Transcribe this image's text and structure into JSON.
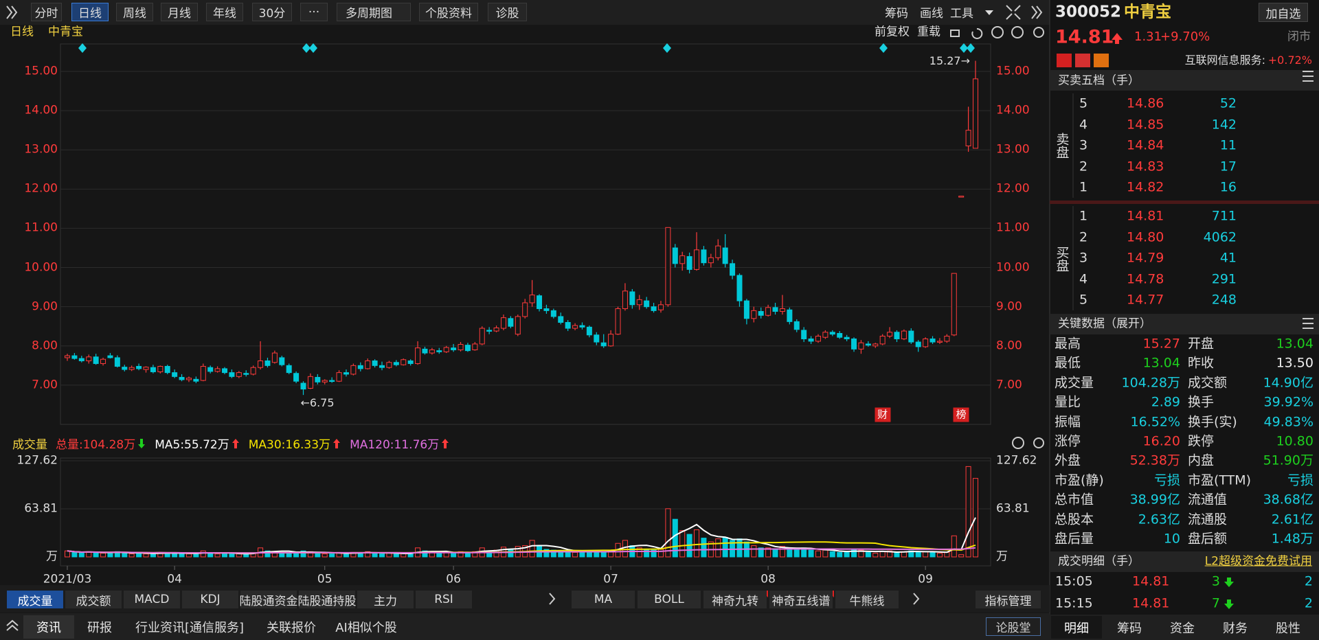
{
  "toolbar": {
    "periods": [
      "分时",
      "日线",
      "周线",
      "月线",
      "年线",
      "30分",
      "···",
      "多周期图",
      "个股资料",
      "诊股"
    ],
    "active": 1,
    "tools": [
      "筹码",
      "画线",
      "工具"
    ],
    "sub_left": [
      "日线",
      "中青宝"
    ],
    "sub_right": [
      "前复权",
      "重载"
    ]
  },
  "chart_data": [
    {
      "type": "candlestick",
      "up_color": "#ff3b3b",
      "down_color": "#00c8d8",
      "ylim": [
        6.0,
        15.7
      ],
      "yticks": [
        {
          "value": 7,
          "label": "7.00"
        },
        {
          "value": 8,
          "label": "8.00"
        },
        {
          "value": 9,
          "label": "9.00"
        },
        {
          "value": 10,
          "label": "10.00"
        },
        {
          "value": 11,
          "label": "11.00"
        },
        {
          "value": 12,
          "label": "12.00"
        },
        {
          "value": 13,
          "label": "13.00"
        },
        {
          "value": 14,
          "label": "14.00"
        },
        {
          "value": 15,
          "label": "15.00"
        }
      ],
      "grid": true,
      "annotations": [
        {
          "text": "15.27→",
          "x": 127,
          "y": 15.27
        },
        {
          "text": "←6.75",
          "x": 33,
          "y": 6.75
        }
      ],
      "badges": [
        {
          "text": "财",
          "x": 114
        },
        {
          "text": "榜",
          "x": 125
        }
      ],
      "ohlc": [
        [
          7.7,
          7.8,
          7.62,
          7.75
        ],
        [
          7.75,
          7.82,
          7.65,
          7.68
        ],
        [
          7.68,
          7.75,
          7.58,
          7.62
        ],
        [
          7.62,
          7.78,
          7.55,
          7.72
        ],
        [
          7.72,
          7.8,
          7.52,
          7.55
        ],
        [
          7.55,
          7.7,
          7.5,
          7.66
        ],
        [
          7.75,
          7.82,
          7.68,
          7.7
        ],
        [
          7.7,
          7.76,
          7.45,
          7.48
        ],
        [
          7.46,
          7.52,
          7.35,
          7.4
        ],
        [
          7.4,
          7.5,
          7.36,
          7.45
        ],
        [
          7.48,
          7.55,
          7.38,
          7.42
        ],
        [
          7.4,
          7.48,
          7.32,
          7.46
        ],
        [
          7.45,
          7.52,
          7.3,
          7.34
        ],
        [
          7.34,
          7.5,
          7.3,
          7.48
        ],
        [
          7.48,
          7.52,
          7.28,
          7.32
        ],
        [
          7.32,
          7.4,
          7.18,
          7.22
        ],
        [
          7.2,
          7.28,
          7.1,
          7.14
        ],
        [
          7.14,
          7.22,
          7.08,
          7.18
        ],
        [
          7.15,
          7.22,
          7.05,
          7.1
        ],
        [
          7.12,
          7.55,
          7.1,
          7.48
        ],
        [
          7.45,
          7.5,
          7.3,
          7.35
        ],
        [
          7.35,
          7.48,
          7.32,
          7.42
        ],
        [
          7.42,
          7.46,
          7.28,
          7.32
        ],
        [
          7.32,
          7.4,
          7.18,
          7.22
        ],
        [
          7.22,
          7.36,
          7.18,
          7.32
        ],
        [
          7.3,
          7.38,
          7.22,
          7.28
        ],
        [
          7.28,
          7.5,
          7.25,
          7.45
        ],
        [
          7.45,
          8.12,
          7.4,
          7.62
        ],
        [
          7.62,
          7.7,
          7.45,
          7.5
        ],
        [
          7.58,
          7.88,
          7.55,
          7.82
        ],
        [
          7.7,
          7.75,
          7.48,
          7.52
        ],
        [
          7.5,
          7.55,
          7.28,
          7.32
        ],
        [
          7.3,
          7.35,
          7.05,
          7.1
        ],
        [
          7.05,
          7.1,
          6.75,
          6.9
        ],
        [
          6.92,
          7.3,
          6.9,
          7.22
        ],
        [
          7.2,
          7.28,
          7.02,
          7.08
        ],
        [
          7.08,
          7.15,
          7.02,
          7.12
        ],
        [
          7.12,
          7.2,
          7.06,
          7.1
        ],
        [
          7.1,
          7.38,
          7.08,
          7.32
        ],
        [
          7.32,
          7.4,
          7.22,
          7.28
        ],
        [
          7.28,
          7.55,
          7.25,
          7.5
        ],
        [
          7.5,
          7.58,
          7.35,
          7.42
        ],
        [
          7.42,
          7.68,
          7.4,
          7.62
        ],
        [
          7.62,
          7.66,
          7.45,
          7.5
        ],
        [
          7.5,
          7.6,
          7.38,
          7.45
        ],
        [
          7.45,
          7.62,
          7.42,
          7.58
        ],
        [
          7.58,
          7.64,
          7.48,
          7.52
        ],
        [
          7.52,
          7.68,
          7.5,
          7.65
        ],
        [
          7.62,
          7.66,
          7.5,
          7.55
        ],
        [
          7.55,
          8.12,
          7.52,
          7.95
        ],
        [
          7.92,
          7.98,
          7.78,
          7.82
        ],
        [
          7.82,
          7.95,
          7.78,
          7.9
        ],
        [
          7.88,
          7.95,
          7.8,
          7.85
        ],
        [
          7.85,
          8.0,
          7.82,
          7.96
        ],
        [
          7.95,
          8.05,
          7.85,
          7.9
        ],
        [
          7.9,
          8.1,
          7.86,
          8.04
        ],
        [
          8.02,
          8.08,
          7.85,
          7.88
        ],
        [
          7.9,
          8.1,
          7.88,
          8.05
        ],
        [
          8.05,
          8.5,
          8.02,
          8.45
        ],
        [
          8.4,
          8.48,
          8.3,
          8.38
        ],
        [
          8.38,
          8.52,
          8.35,
          8.46
        ],
        [
          8.45,
          8.8,
          8.4,
          8.72
        ],
        [
          8.7,
          8.76,
          8.45,
          8.5
        ],
        [
          8.3,
          8.8,
          8.25,
          8.75
        ],
        [
          8.75,
          9.2,
          8.7,
          9.1
        ],
        [
          9.1,
          9.68,
          9.0,
          9.3
        ],
        [
          9.28,
          9.32,
          8.88,
          8.95
        ],
        [
          8.95,
          9.05,
          8.82,
          8.9
        ],
        [
          8.9,
          8.95,
          8.7,
          8.75
        ],
        [
          8.75,
          8.85,
          8.55,
          8.6
        ],
        [
          8.6,
          8.66,
          8.38,
          8.45
        ],
        [
          8.45,
          8.58,
          8.4,
          8.52
        ],
        [
          8.52,
          8.6,
          8.42,
          8.48
        ],
        [
          8.48,
          8.52,
          8.22,
          8.28
        ],
        [
          8.28,
          8.35,
          8.02,
          8.1
        ],
        [
          8.08,
          8.3,
          7.95,
          8.0
        ],
        [
          8.0,
          8.4,
          7.98,
          8.3
        ],
        [
          8.3,
          9.0,
          8.28,
          8.95
        ],
        [
          8.95,
          9.6,
          8.9,
          9.4
        ],
        [
          9.38,
          9.45,
          8.95,
          9.05
        ],
        [
          9.05,
          9.3,
          8.92,
          9.18
        ],
        [
          9.15,
          9.25,
          8.95,
          9.0
        ],
        [
          9.0,
          9.1,
          8.85,
          8.9
        ],
        [
          8.92,
          9.15,
          8.85,
          9.05
        ],
        [
          9.05,
          11.02,
          9.0,
          11.02
        ],
        [
          10.5,
          10.6,
          10.0,
          10.1
        ],
        [
          10.1,
          10.4,
          9.92,
          10.3
        ],
        [
          10.28,
          10.38,
          9.85,
          9.95
        ],
        [
          9.95,
          10.9,
          9.92,
          10.45
        ],
        [
          10.45,
          10.55,
          10.05,
          10.12
        ],
        [
          10.12,
          10.35,
          10.0,
          10.25
        ],
        [
          10.25,
          10.72,
          10.18,
          10.55
        ],
        [
          10.5,
          10.85,
          10.0,
          10.1
        ],
        [
          10.1,
          10.2,
          9.7,
          9.8
        ],
        [
          9.8,
          9.85,
          9.0,
          9.15
        ],
        [
          9.15,
          9.2,
          8.55,
          8.7
        ],
        [
          8.7,
          9.0,
          8.6,
          8.9
        ],
        [
          8.88,
          8.98,
          8.7,
          8.78
        ],
        [
          8.78,
          9.05,
          8.75,
          8.98
        ],
        [
          8.98,
          9.1,
          8.8,
          8.88
        ],
        [
          8.88,
          9.3,
          8.8,
          8.95
        ],
        [
          8.92,
          8.98,
          8.55,
          8.62
        ],
        [
          8.62,
          8.68,
          8.35,
          8.42
        ],
        [
          8.4,
          8.48,
          8.1,
          8.18
        ],
        [
          8.18,
          8.25,
          8.05,
          8.12
        ],
        [
          8.12,
          8.3,
          8.08,
          8.25
        ],
        [
          8.22,
          8.4,
          8.18,
          8.35
        ],
        [
          8.35,
          8.4,
          8.25,
          8.3
        ],
        [
          8.32,
          8.38,
          8.18,
          8.22
        ],
        [
          8.22,
          8.28,
          8.12,
          8.18
        ],
        [
          8.18,
          8.22,
          7.85,
          7.92
        ],
        [
          7.92,
          8.15,
          7.8,
          8.08
        ],
        [
          8.05,
          8.12,
          7.98,
          8.02
        ],
        [
          8.0,
          8.08,
          7.95,
          8.05
        ],
        [
          8.05,
          8.3,
          8.02,
          8.25
        ],
        [
          8.25,
          8.48,
          8.2,
          8.35
        ],
        [
          8.35,
          8.4,
          8.1,
          8.18
        ],
        [
          8.18,
          8.42,
          8.15,
          8.38
        ],
        [
          8.38,
          8.45,
          8.05,
          8.1
        ],
        [
          8.1,
          8.15,
          7.85,
          7.98
        ],
        [
          7.98,
          8.22,
          7.95,
          8.18
        ],
        [
          8.18,
          8.25,
          8.05,
          8.1
        ],
        [
          8.1,
          8.2,
          8.05,
          8.12
        ],
        [
          8.12,
          8.3,
          8.08,
          8.25
        ],
        [
          8.28,
          9.85,
          8.25,
          9.85
        ],
        [
          11.82,
          11.82,
          11.82,
          11.82
        ],
        [
          13.1,
          14.1,
          12.95,
          13.5
        ],
        [
          13.04,
          15.27,
          13.04,
          14.81
        ]
      ]
    },
    {
      "type": "bar",
      "title": "成交量",
      "legend": [
        "总量:104.28万",
        "MA5:55.72万",
        "MA30:16.33万",
        "MA120:11.76万"
      ],
      "ma": [
        {
          "period": 5,
          "color": "#ffffff"
        },
        {
          "period": 30,
          "color": "#f5e400"
        },
        {
          "period": 120,
          "color": "#e070e0"
        }
      ],
      "ylim": [
        0,
        131.3
      ],
      "yticks": [
        {
          "value": 0,
          "label": "万"
        },
        63.81,
        127.62
      ],
      "grid": true,
      "xticks": [
        {
          "value": 0,
          "label": "2021/03"
        },
        {
          "value": 15,
          "label": "04"
        },
        {
          "value": 36,
          "label": "05"
        },
        {
          "value": 54,
          "label": "06"
        },
        {
          "value": 76,
          "label": "07"
        },
        {
          "value": 98,
          "label": "08"
        },
        {
          "value": 120,
          "label": "09"
        }
      ],
      "values": [
        8,
        6,
        5,
        7,
        6,
        5,
        6,
        7,
        5,
        4,
        5,
        4,
        5,
        6,
        5,
        5,
        4,
        4,
        5,
        8,
        5,
        4,
        4,
        5,
        4,
        4,
        5,
        12,
        8,
        7,
        6,
        5,
        6,
        8,
        7,
        5,
        4,
        4,
        6,
        5,
        6,
        5,
        7,
        5,
        4,
        5,
        4,
        5,
        5,
        12,
        8,
        6,
        5,
        6,
        5,
        7,
        6,
        7,
        12,
        8,
        9,
        13,
        10,
        14,
        15,
        22,
        14,
        10,
        9,
        8,
        8,
        6,
        6,
        7,
        8,
        7,
        9,
        18,
        22,
        15,
        12,
        10,
        9,
        10,
        64,
        50,
        35,
        30,
        36,
        25,
        20,
        24,
        26,
        22,
        24,
        20,
        15,
        12,
        12,
        10,
        14,
        12,
        10,
        12,
        9,
        8,
        9,
        7,
        6,
        6,
        10,
        9,
        6,
        5,
        7,
        8,
        6,
        7,
        8,
        7,
        7,
        6,
        5,
        6,
        28,
        3,
        120,
        104.28
      ]
    }
  ],
  "indicator_tabs": {
    "left": [
      "成交量",
      "成交额",
      "MACD",
      "KDJ",
      "陆股通资金",
      "陆股通持股",
      "主力",
      "RSI"
    ],
    "right": [
      "MA",
      "BOLL",
      "神奇九转",
      "神奇五线谱",
      "牛熊线"
    ],
    "manage": "指标管理"
  },
  "news_tabs": [
    "资讯",
    "研报",
    "行业资讯[通信服务]",
    "关联报价",
    "AI相似个股"
  ],
  "forum": "论股堂",
  "quote": {
    "code": "300052",
    "name": "中青宝",
    "add": "加自选",
    "price": "14.81",
    "change": "1.31",
    "pct": "+9.70%",
    "status": "闭市",
    "sector": "互联网信息服务:",
    "sector_pct": "+0.72%"
  },
  "order_book": {
    "title": "买卖五档（手）",
    "sell_label": "卖盘",
    "buy_label": "买盘",
    "asks": [
      [
        "5",
        "14.86",
        "52"
      ],
      [
        "4",
        "14.85",
        "142"
      ],
      [
        "3",
        "14.84",
        "11"
      ],
      [
        "2",
        "14.83",
        "17"
      ],
      [
        "1",
        "14.82",
        "16"
      ]
    ],
    "bids": [
      [
        "1",
        "14.81",
        "711"
      ],
      [
        "2",
        "14.80",
        "4062"
      ],
      [
        "3",
        "14.79",
        "41"
      ],
      [
        "4",
        "14.78",
        "291"
      ],
      [
        "5",
        "14.77",
        "248"
      ]
    ]
  },
  "key_data": {
    "title": "关键数据（展开）",
    "rows": [
      [
        {
          "label": "最高",
          "value": "15.27",
          "tone": "up"
        },
        {
          "label": "开盘",
          "value": "13.04",
          "tone": "down"
        }
      ],
      [
        {
          "label": "最低",
          "value": "13.04",
          "tone": "down"
        },
        {
          "label": "昨收",
          "value": "13.50",
          "tone": "flat"
        }
      ],
      [
        {
          "label": "成交量",
          "value": "104.28万",
          "tone": "info"
        },
        {
          "label": "成交额",
          "value": "14.90亿",
          "tone": "info"
        }
      ],
      [
        {
          "label": "量比",
          "value": "2.89",
          "tone": "info"
        },
        {
          "label": "换手",
          "value": "39.92%",
          "tone": "info"
        }
      ],
      [
        {
          "label": "振幅",
          "value": "16.52%",
          "tone": "info"
        },
        {
          "label": "换手(实)",
          "value": "49.83%",
          "tone": "info"
        }
      ],
      [
        {
          "label": "涨停",
          "value": "16.20",
          "tone": "up"
        },
        {
          "label": "跌停",
          "value": "10.80",
          "tone": "down"
        }
      ],
      [
        {
          "label": "外盘",
          "value": "52.38万",
          "tone": "up"
        },
        {
          "label": "内盘",
          "value": "51.90万",
          "tone": "down"
        }
      ],
      [
        {
          "label": "市盈(静)",
          "value": "亏损",
          "tone": "info"
        },
        {
          "label": "市盈(TTM)",
          "value": "亏损",
          "tone": "info"
        }
      ],
      [
        {
          "label": "总市值",
          "value": "38.99亿",
          "tone": "info"
        },
        {
          "label": "流通值",
          "value": "38.68亿",
          "tone": "info"
        }
      ],
      [
        {
          "label": "总股本",
          "value": "2.63亿",
          "tone": "info"
        },
        {
          "label": "流通股",
          "value": "2.61亿",
          "tone": "info"
        }
      ],
      [
        {
          "label": "盘后量",
          "value": "10",
          "tone": "info"
        },
        {
          "label": "盘后额",
          "value": "1.48万",
          "tone": "info"
        }
      ]
    ]
  },
  "trades": {
    "title": "成交明细（手）",
    "promo": "L2超级资金免费试用",
    "rows": [
      [
        "15:05",
        "14.81",
        "3",
        "2"
      ],
      [
        "15:15",
        "14.81",
        "7",
        "2"
      ]
    ]
  },
  "detail_tabs": [
    "明细",
    "筹码",
    "资金",
    "财务",
    "股性"
  ]
}
